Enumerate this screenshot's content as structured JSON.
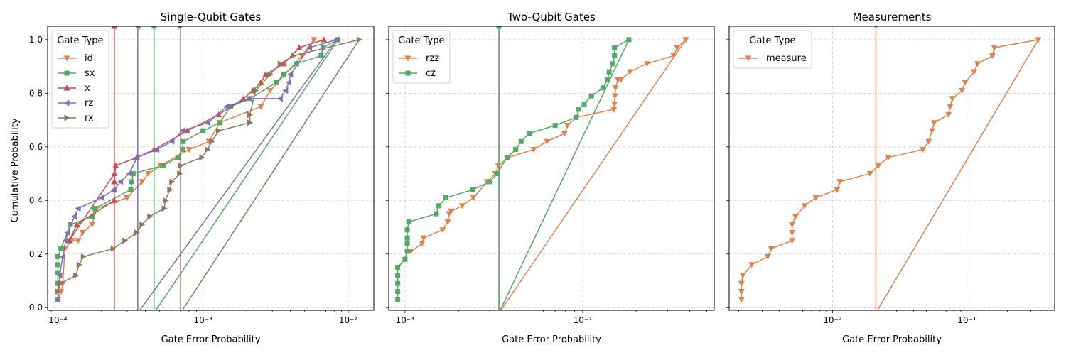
{
  "figure": {
    "ylabel": "Cumulative Probability",
    "xlabel": "Gate Error Probability",
    "legend_title": "Gate Type"
  },
  "chart_data": [
    {
      "type": "line",
      "title": "Single-Qubit Gates",
      "xlabel": "Gate Error Probability",
      "ylabel": "Cumulative Probability",
      "xscale": "log",
      "xlim": [
        8.5e-05,
        0.015
      ],
      "ylim": [
        -0.01,
        1.05
      ],
      "xticks": [
        {
          "v": 0.0001,
          "label": "10⁻⁴"
        },
        {
          "v": 0.001,
          "label": "10⁻³"
        },
        {
          "v": 0.01,
          "label": "10⁻²"
        }
      ],
      "yticks": [
        {
          "v": 0.0,
          "label": "0.0"
        },
        {
          "v": 0.2,
          "label": "0.2"
        },
        {
          "v": 0.4,
          "label": "0.4"
        },
        {
          "v": 0.6,
          "label": "0.6"
        },
        {
          "v": 0.8,
          "label": "0.8"
        },
        {
          "v": 1.0,
          "label": "1.0"
        }
      ],
      "show_yticklabels": true,
      "grid": true,
      "legend": "top-left",
      "series": [
        {
          "name": "id",
          "color": "#dd8452",
          "marker": "tri-down",
          "x": [
            0.0001,
            0.000105,
            0.000108,
            0.000112,
            0.000125,
            0.000138,
            0.000148,
            0.000172,
            0.000185,
            0.0003,
            0.00038,
            0.00042,
            0.00051,
            0.0008,
            0.0011,
            0.0013,
            0.0025,
            0.0029,
            0.0048,
            0.0058
          ],
          "y": [
            0.03,
            0.06,
            0.09,
            0.22,
            0.25,
            0.25,
            0.28,
            0.31,
            0.37,
            0.41,
            0.47,
            0.5,
            0.53,
            0.59,
            0.62,
            0.69,
            0.75,
            0.81,
            0.94,
            1.0
          ]
        },
        {
          "name": "sx",
          "color": "#55a868",
          "marker": "square",
          "x": [
            0.0001,
            0.0001,
            0.0001,
            0.0001,
            0.0001,
            0.000105,
            0.000122,
            0.000173,
            0.00018,
            0.000318,
            0.000323,
            0.00033,
            0.00053,
            0.00067,
            0.00072,
            0.00073,
            0.001,
            0.0013,
            0.00155,
            0.0021,
            0.0032,
            0.0036,
            0.0044,
            0.0065,
            0.0067,
            0.0085,
            0.00046,
            0.00046
          ],
          "y": [
            0.03,
            0.09,
            0.13,
            0.16,
            0.19,
            0.22,
            0.31,
            0.34,
            0.37,
            0.44,
            0.47,
            0.5,
            0.53,
            0.56,
            0.59,
            0.62,
            0.66,
            0.69,
            0.75,
            0.78,
            0.84,
            0.87,
            0.91,
            0.94,
            0.97,
            1.0,
            -0.02,
            1.05
          ]
        },
        {
          "name": "x",
          "color": "#c44e52",
          "marker": "tri-up",
          "x": [
            0.000245,
            0.000245,
            0.000245,
            0.000245,
            0.00012,
            0.000135,
            0.000245,
            0.000245,
            0.000245,
            0.00025,
            0.00035,
            0.00046,
            0.00078,
            0.00128,
            0.0019,
            0.0022,
            0.0025,
            0.0027,
            0.0036,
            0.0046,
            0.0068
          ],
          "y": [
            -0.02,
            1.05,
            0.47,
            0.5,
            0.25,
            0.31,
            0.4,
            0.44,
            0.47,
            0.53,
            0.56,
            0.59,
            0.66,
            0.72,
            0.78,
            0.81,
            0.84,
            0.87,
            0.91,
            0.97,
            1.0
          ]
        },
        {
          "name": "rz",
          "color": "#8172b2",
          "marker": "tri-left",
          "x": [
            0.0001,
            0.000103,
            0.000108,
            0.000113,
            0.000117,
            0.00013,
            0.000138,
            0.0002,
            0.000243,
            0.00027,
            0.00031,
            0.00035,
            0.00048,
            0.00061,
            0.00072,
            0.00108,
            0.00145,
            0.0021,
            0.0034,
            0.0037,
            0.0039,
            0.004,
            0.0054,
            0.0083,
            0.000355,
            0.000355
          ],
          "y": [
            0.03,
            0.12,
            0.19,
            0.25,
            0.28,
            0.34,
            0.37,
            0.41,
            0.44,
            0.47,
            0.5,
            0.56,
            0.59,
            0.62,
            0.66,
            0.69,
            0.75,
            0.78,
            0.78,
            0.81,
            0.84,
            0.87,
            0.97,
            1.0,
            -0.02,
            1.05
          ]
        },
        {
          "name": "rx",
          "color": "#937860",
          "marker": "tri-right",
          "x": [
            0.0001,
            0.000104,
            0.000133,
            0.00014,
            0.00015,
            0.00024,
            0.00029,
            0.00035,
            0.00038,
            0.00043,
            0.00054,
            0.00055,
            0.00059,
            0.00061,
            0.00069,
            0.0007,
            0.00098,
            0.00107,
            0.00115,
            0.00128,
            0.0021,
            0.0021,
            0.0023,
            0.0029,
            0.0034,
            0.0042,
            0.0119,
            0.0007,
            0.0007
          ],
          "y": [
            0.06,
            0.09,
            0.12,
            0.16,
            0.19,
            0.22,
            0.25,
            0.28,
            0.31,
            0.34,
            0.37,
            0.4,
            0.44,
            0.47,
            0.5,
            0.53,
            0.56,
            0.59,
            0.62,
            0.66,
            0.69,
            0.72,
            0.81,
            0.87,
            0.91,
            0.94,
            1.0,
            -0.02,
            1.05
          ]
        }
      ]
    },
    {
      "type": "line",
      "title": "Two-Qubit Gates",
      "xlabel": "Gate Error Probability",
      "xscale": "log",
      "xlim": [
        0.00081,
        0.055
      ],
      "ylim": [
        -0.01,
        1.05
      ],
      "xticks": [
        {
          "v": 0.001,
          "label": "10⁻³"
        },
        {
          "v": 0.01,
          "label": "10⁻²"
        }
      ],
      "yticks": [
        {
          "v": 0.0,
          "label": "0.0"
        },
        {
          "v": 0.2,
          "label": "0.2"
        },
        {
          "v": 0.4,
          "label": "0.4"
        },
        {
          "v": 0.6,
          "label": "0.6"
        },
        {
          "v": 0.8,
          "label": "0.8"
        },
        {
          "v": 1.0,
          "label": "1.0"
        }
      ],
      "show_yticklabels": false,
      "grid": true,
      "legend": "top-left",
      "series": [
        {
          "name": "rzz",
          "color": "#dd8452",
          "marker": "tri-down",
          "x": [
            0.00108,
            0.00125,
            0.00127,
            0.00163,
            0.00174,
            0.00177,
            0.00182,
            0.0021,
            0.00243,
            0.0029,
            0.00323,
            0.00335,
            0.0038,
            0.0053,
            0.0063,
            0.0079,
            0.0082,
            0.0092,
            0.015,
            0.0151,
            0.0152,
            0.0153,
            0.0158,
            0.0164,
            0.0185,
            0.023,
            0.0325,
            0.034,
            0.038,
            0.00338,
            0.00338
          ],
          "y": [
            0.21,
            0.24,
            0.26,
            0.29,
            0.32,
            0.35,
            0.36,
            0.38,
            0.41,
            0.47,
            0.5,
            0.53,
            0.56,
            0.59,
            0.62,
            0.65,
            0.68,
            0.71,
            0.74,
            0.76,
            0.79,
            0.82,
            0.85,
            0.85,
            0.88,
            0.91,
            0.94,
            0.97,
            1.0,
            -0.02,
            1.05
          ]
        },
        {
          "name": "cz",
          "color": "#55a868",
          "marker": "square",
          "x": [
            0.00091,
            0.00091,
            0.00091,
            0.00091,
            0.00091,
            0.001,
            0.00103,
            0.00103,
            0.00103,
            0.00103,
            0.00105,
            0.0015,
            0.00155,
            0.0017,
            0.0024,
            0.003,
            0.0033,
            0.00375,
            0.0042,
            0.0045,
            0.005,
            0.007,
            0.0092,
            0.0095,
            0.0102,
            0.0112,
            0.013,
            0.0138,
            0.0141,
            0.0148,
            0.0151,
            0.0151,
            0.0182,
            0.00338,
            0.00338
          ],
          "y": [
            0.03,
            0.06,
            0.09,
            0.12,
            0.15,
            0.18,
            0.21,
            0.24,
            0.26,
            0.29,
            0.32,
            0.35,
            0.38,
            0.41,
            0.44,
            0.47,
            0.5,
            0.56,
            0.59,
            0.62,
            0.65,
            0.68,
            0.71,
            0.74,
            0.76,
            0.79,
            0.82,
            0.85,
            0.88,
            0.91,
            0.94,
            0.97,
            1.0,
            -0.02,
            1.05
          ]
        }
      ]
    },
    {
      "type": "line",
      "title": "Measurements",
      "xlabel": "Gate Error Probability",
      "xscale": "log",
      "xlim": [
        0.0017,
        0.45
      ],
      "ylim": [
        -0.01,
        1.05
      ],
      "xticks": [
        {
          "v": 0.01,
          "label": "10⁻²"
        },
        {
          "v": 0.1,
          "label": "10⁻¹"
        }
      ],
      "yticks": [
        {
          "v": 0.0,
          "label": "0.0"
        },
        {
          "v": 0.2,
          "label": "0.2"
        },
        {
          "v": 0.4,
          "label": "0.4"
        },
        {
          "v": 0.6,
          "label": "0.6"
        },
        {
          "v": 0.8,
          "label": "0.8"
        },
        {
          "v": 1.0,
          "label": "1.0"
        }
      ],
      "show_yticklabels": false,
      "grid": true,
      "legend": "top-left",
      "series": [
        {
          "name": "measure",
          "color": "#dd8452",
          "marker": "tri-down",
          "x": [
            0.0021,
            0.0021,
            0.0021,
            0.00215,
            0.0025,
            0.0033,
            0.0035,
            0.005,
            0.005,
            0.005,
            0.005,
            0.0053,
            0.0062,
            0.0075,
            0.0108,
            0.0113,
            0.019,
            0.022,
            0.026,
            0.047,
            0.052,
            0.055,
            0.057,
            0.073,
            0.075,
            0.078,
            0.092,
            0.097,
            0.113,
            0.12,
            0.155,
            0.16,
            0.34,
            0.021,
            0.021
          ],
          "y": [
            0.03,
            0.06,
            0.09,
            0.12,
            0.16,
            0.19,
            0.22,
            0.25,
            0.28,
            0.31,
            0.31,
            0.34,
            0.38,
            0.41,
            0.44,
            0.47,
            0.5,
            0.53,
            0.56,
            0.59,
            0.62,
            0.66,
            0.69,
            0.72,
            0.75,
            0.78,
            0.81,
            0.84,
            0.88,
            0.91,
            0.94,
            0.97,
            1.0,
            -0.02,
            1.05
          ]
        }
      ]
    }
  ]
}
